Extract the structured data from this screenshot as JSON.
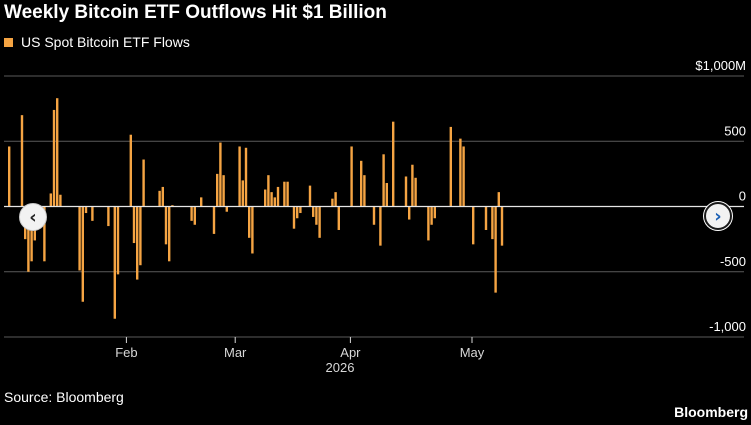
{
  "title": "Weekly Bitcoin ETF Outflows Hit $1 Billion",
  "source": "Source: Bloomberg",
  "brand": "Bloomberg",
  "nav": {
    "prev_glyph": "‹",
    "next_glyph": "›"
  },
  "colors": {
    "bar": "#f5a443",
    "grid": "#5a5a5a",
    "zero": "#e6e6e6",
    "background": "#000000",
    "text": "#ffffff",
    "axis_text": "#d8d8d8"
  },
  "chart_data": {
    "type": "bar",
    "title": "Weekly Bitcoin ETF Outflows Hit $1 Billion",
    "xlabel": "2026",
    "ylabel": "",
    "ylim": [
      -1000,
      1000
    ],
    "yticks": [
      {
        "value": 1000,
        "label": "$1,000M"
      },
      {
        "value": 500,
        "label": "500"
      },
      {
        "value": 0,
        "label": "0"
      },
      {
        "value": -500,
        "label": "-500"
      },
      {
        "value": -1000,
        "label": "-1,000"
      }
    ],
    "xticks": [
      {
        "index": 37,
        "label": "Feb"
      },
      {
        "index": 71,
        "label": "Mar"
      },
      {
        "index": 107,
        "label": "Apr"
      },
      {
        "index": 145,
        "label": "May"
      }
    ],
    "year_label": "2026",
    "gridlines": true,
    "legend_position": "top-left",
    "series": [
      {
        "name": "US Spot Bitcoin ETF Flows",
        "values": [
          460,
          0,
          0,
          0,
          700,
          -250,
          -500,
          -420,
          -260,
          0,
          0,
          -420,
          0,
          100,
          740,
          830,
          90,
          0,
          0,
          0,
          0,
          0,
          -490,
          -730,
          -50,
          0,
          -110,
          0,
          0,
          0,
          0,
          -150,
          0,
          -860,
          -520,
          0,
          0,
          0,
          550,
          -280,
          -560,
          -450,
          360,
          0,
          0,
          0,
          0,
          120,
          150,
          -290,
          -420,
          10,
          0,
          0,
          0,
          0,
          0,
          -110,
          -140,
          0,
          70,
          0,
          0,
          0,
          -210,
          250,
          490,
          240,
          -40,
          0,
          0,
          0,
          460,
          200,
          450,
          -240,
          -360,
          0,
          0,
          0,
          130,
          240,
          110,
          70,
          150,
          0,
          190,
          190,
          0,
          -170,
          -90,
          -50,
          0,
          0,
          160,
          -80,
          -140,
          -240,
          0,
          0,
          0,
          60,
          110,
          -180,
          0,
          0,
          0,
          460,
          0,
          0,
          350,
          240,
          0,
          0,
          -140,
          0,
          -300,
          400,
          180,
          0,
          650,
          0,
          0,
          0,
          230,
          -100,
          320,
          220,
          0,
          0,
          0,
          -260,
          -140,
          -90,
          0,
          0,
          0,
          0,
          610,
          0,
          0,
          520,
          460,
          0,
          0,
          -290,
          0,
          0,
          0,
          -180,
          0,
          -250,
          -660,
          110,
          -300
        ]
      }
    ]
  }
}
